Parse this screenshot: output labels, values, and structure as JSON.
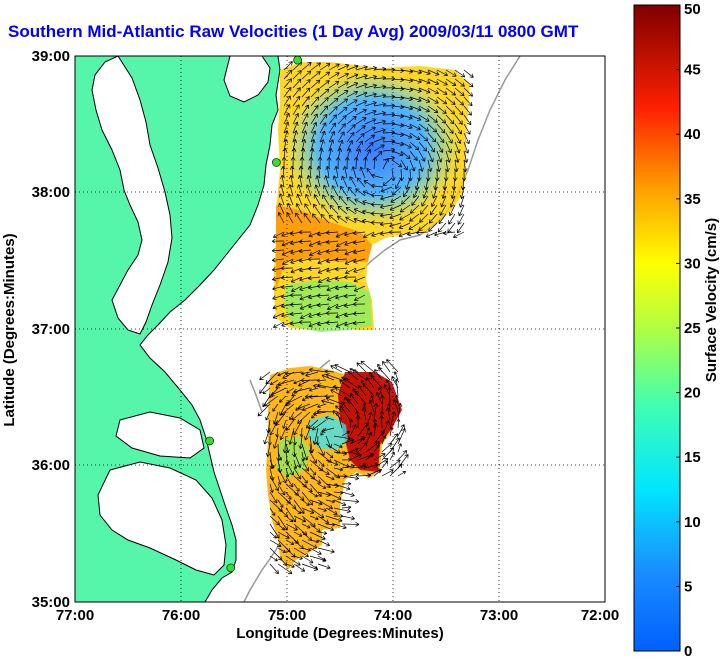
{
  "title": "Southern Mid-Atlantic Raw Velocities (1 Day Avg) 2009/03/11 0800 GMT",
  "map": {
    "xlabel": "Longitude (Degrees:Minutes)",
    "ylabel": "Latitude (Degrees:Minutes)",
    "lon_ticks": [
      "77:00",
      "76:00",
      "75:00",
      "74:00",
      "73:00",
      "72:00"
    ],
    "lat_ticks": [
      "39:00",
      "38:00",
      "37:00",
      "36:00",
      "35:00"
    ],
    "lon_range": [
      -77,
      -72
    ],
    "lat_range": [
      35,
      39
    ],
    "grid": "dotted",
    "colors": {
      "land": "#55f5aa",
      "water": "#ffffff",
      "coast": "#000000",
      "bathymetry": "#999999",
      "station": "#33dd33"
    }
  },
  "colorbar": {
    "label": "Surface Velocity (cm/s)",
    "ticks": [
      "0",
      "5",
      "10",
      "15",
      "20",
      "25",
      "30",
      "35",
      "40",
      "45",
      "50"
    ],
    "range": [
      0,
      50
    ]
  },
  "stations": [
    {
      "lon": -74.9,
      "lat": 38.97
    },
    {
      "lon": -75.1,
      "lat": 38.22
    },
    {
      "lon": -75.73,
      "lat": 36.18
    },
    {
      "lon": -75.53,
      "lat": 35.25
    }
  ]
}
